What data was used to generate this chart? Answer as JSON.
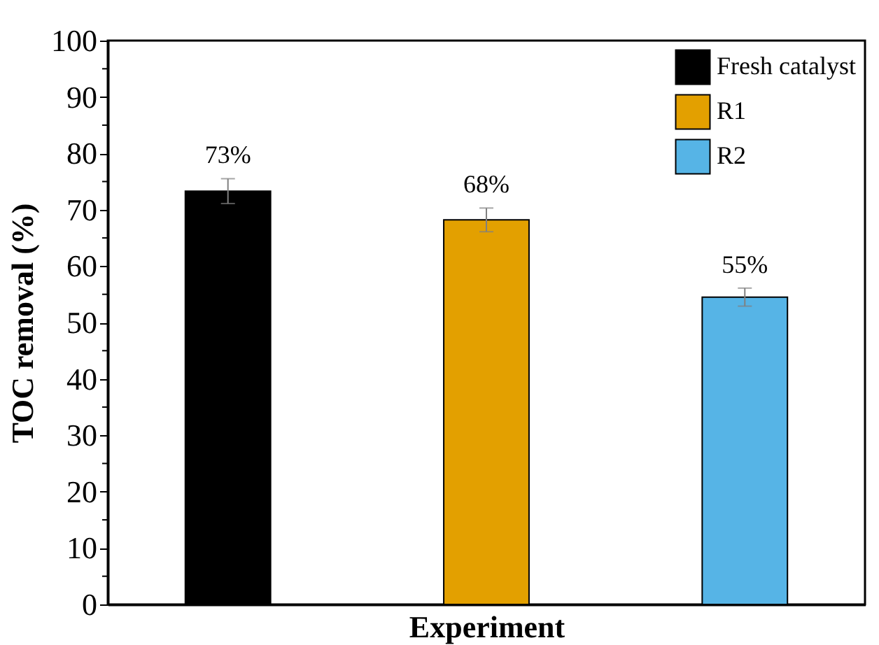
{
  "chart_data": {
    "type": "bar",
    "xlabel": "Experiment",
    "ylabel": "TOC removal (%)",
    "categories": [
      null,
      null,
      null
    ],
    "series": [
      {
        "name": "Fresh catalyst",
        "color": "#000000",
        "values": [
          73.3,
          null,
          null
        ],
        "errors": [
          2.2,
          null,
          null
        ],
        "value_labels": [
          "73%",
          null,
          null
        ]
      },
      {
        "name": "R1",
        "color": "#e3a000",
        "values": [
          null,
          68.2,
          null
        ],
        "errors": [
          null,
          2.1,
          null
        ],
        "value_labels": [
          null,
          "68%",
          null
        ]
      },
      {
        "name": "R2",
        "color": "#56b4e6",
        "values": [
          null,
          null,
          54.5
        ],
        "errors": [
          null,
          null,
          1.6
        ],
        "value_labels": [
          null,
          null,
          "55%"
        ]
      }
    ],
    "ylim": [
      0,
      100
    ],
    "yticks": [
      0,
      {
        "value": 5,
        "label": null
      },
      10,
      {
        "value": 15,
        "label": null
      },
      20,
      {
        "value": 25,
        "label": null
      },
      30,
      {
        "value": 35,
        "label": null
      },
      40,
      {
        "value": 45,
        "label": null
      },
      50,
      {
        "value": 55,
        "label": null
      },
      60,
      {
        "value": 65,
        "label": null
      },
      70,
      {
        "value": 75,
        "label": null
      },
      80,
      {
        "value": 85,
        "label": null
      },
      90,
      {
        "value": 95,
        "label": null
      },
      100
    ],
    "tick_labels": "y",
    "legend": "top right",
    "grid": false
  }
}
